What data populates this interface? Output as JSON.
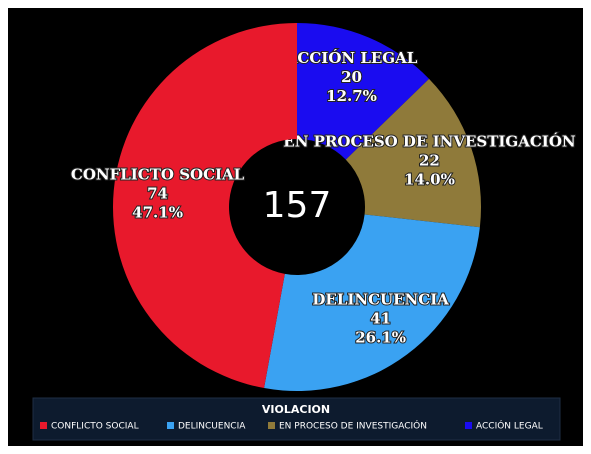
{
  "chart_data": {
    "type": "donut",
    "categories": [
      "ACCIÓN LEGAL",
      "EN PROCESO DE INVESTIGACIÓN",
      "DELINCUENCIA",
      "CONFLICTO SOCIAL"
    ],
    "values": [
      20,
      22,
      41,
      74
    ],
    "percentages": [
      12.7,
      14.0,
      26.1,
      47.1
    ],
    "percent_labels": [
      "12.7%",
      "14.0%",
      "26.1%",
      "47.1%"
    ],
    "colors": [
      "#1a0cf0",
      "#8f7a3a",
      "#3aa2f2",
      "#e8192c"
    ],
    "total": 157,
    "legend_title": "VIOLACION",
    "legend_items": [
      3,
      2,
      1,
      0
    ]
  }
}
